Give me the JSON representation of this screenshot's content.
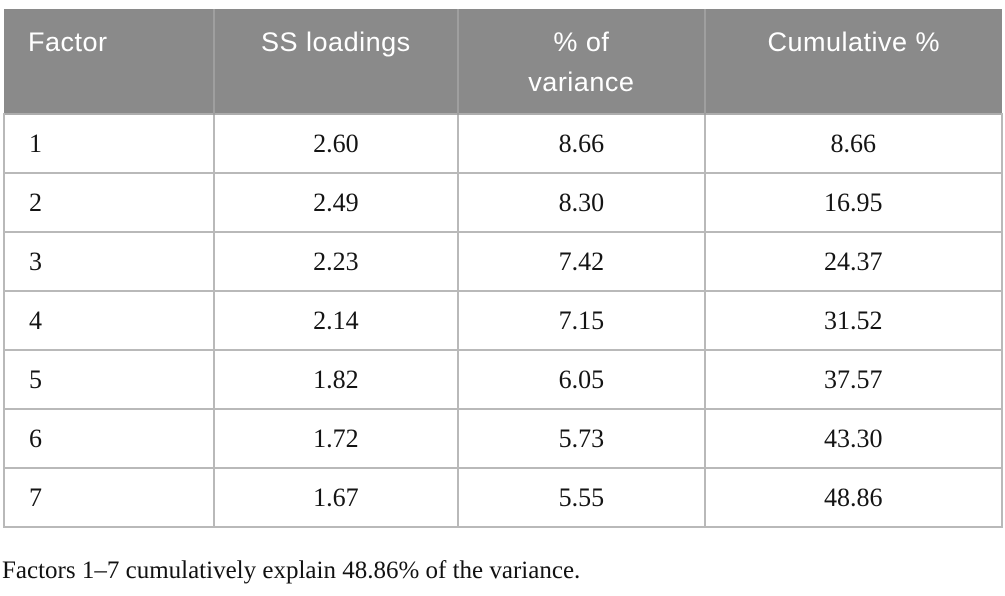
{
  "table": {
    "columns": [
      "Factor",
      "SS loadings",
      "% of\nvariance",
      "Cumulative %"
    ],
    "rows": [
      [
        "1",
        "2.60",
        "8.66",
        "8.66"
      ],
      [
        "2",
        "2.49",
        "8.30",
        "16.95"
      ],
      [
        "3",
        "2.23",
        "7.42",
        "24.37"
      ],
      [
        "4",
        "2.14",
        "7.15",
        "31.52"
      ],
      [
        "5",
        "1.82",
        "6.05",
        "37.57"
      ],
      [
        "6",
        "1.72",
        "5.73",
        "43.30"
      ],
      [
        "7",
        "1.67",
        "5.55",
        "48.86"
      ]
    ]
  },
  "footnote": "Factors 1–7 cumulatively explain 48.86% of the variance.",
  "colors": {
    "header_bg": "#8a8a8a",
    "header_text": "#ffffff",
    "header_divider": "#9f9f9f",
    "row_border": "#b9b9b9",
    "body_text": "#141414",
    "page_bg": "#ffffff"
  }
}
